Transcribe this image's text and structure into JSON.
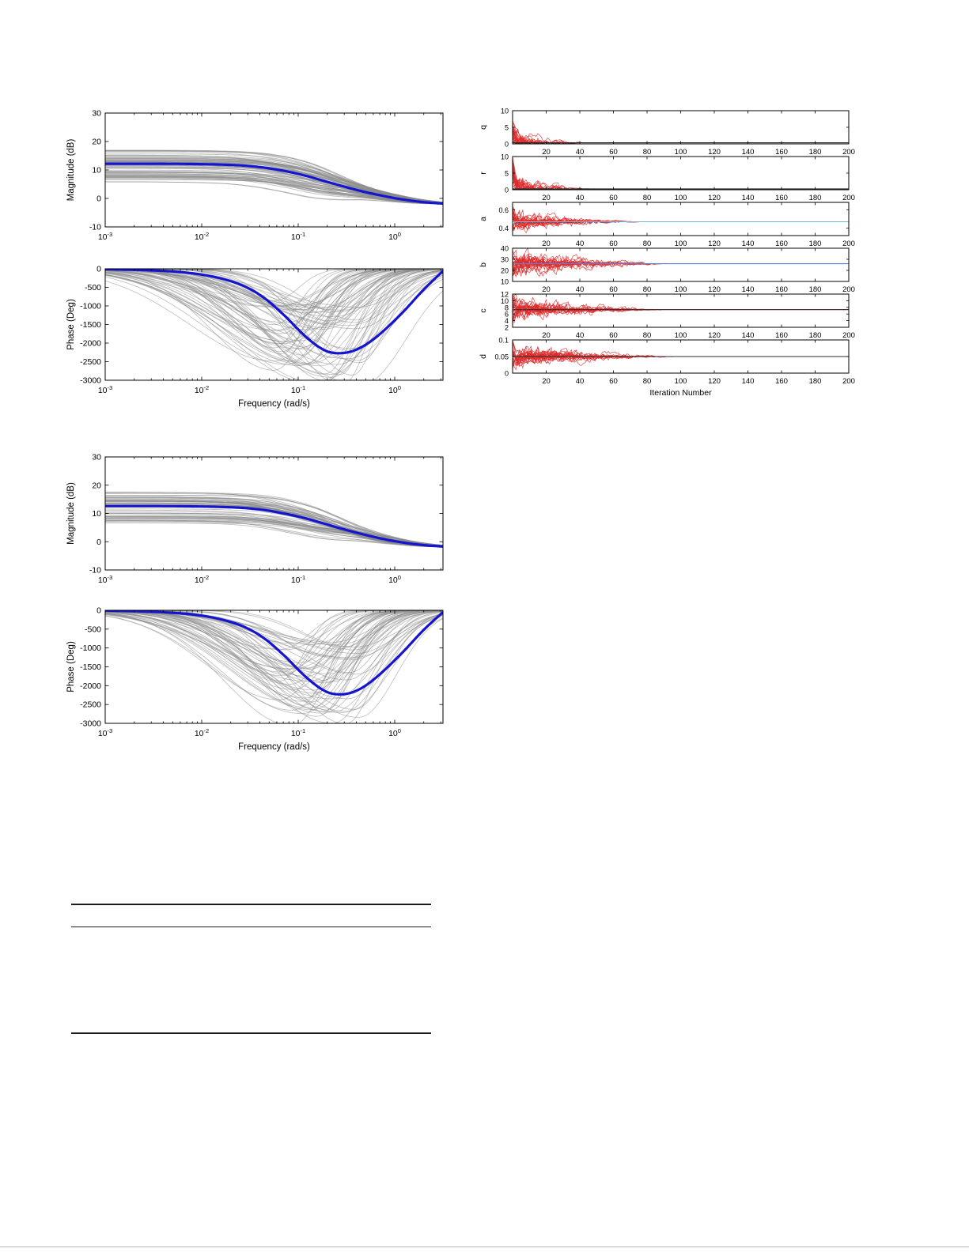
{
  "colors": {
    "mean_line": "#1515cf",
    "ensemble_gray": "#8a8a8a",
    "trace_red": "#dd2a2a",
    "target_dark": "#2b2b2b",
    "target_lightblue": "#6fb7dc",
    "target_blue": "#5b7fd4",
    "axis": "#000000"
  },
  "chart_data": [
    {
      "id": "bode1_mag",
      "kind": "bode_mag",
      "type": "line",
      "ylabel": "Magnitude (dB)",
      "xlabel": "",
      "ylim": [
        -10,
        30
      ],
      "yticks": [
        -10,
        0,
        10,
        20,
        30
      ],
      "xlim_log": [
        -3,
        0.5
      ],
      "xtick_exps": [
        -3,
        -2,
        -1,
        0
      ],
      "mean": {
        "x": [
          -3,
          -2.5,
          -2.1,
          -1.8,
          -1.55,
          -1.35,
          -1.15,
          -0.95,
          -0.75,
          -0.55,
          -0.35,
          -0.15,
          0.05,
          0.3,
          0.5
        ],
        "y": [
          12.2,
          12.2,
          12.1,
          11.9,
          11.5,
          10.8,
          9.7,
          8.2,
          6.3,
          4.4,
          2.6,
          1.1,
          -0.2,
          -1.3,
          -1.8
        ]
      },
      "ensemble": {
        "count": 68,
        "seed": 7,
        "offset": [
          -6.5,
          5
        ],
        "shift": 0.2,
        "extra": [
          {
            "offset": 9.5,
            "shift": -0.5,
            "droop": 7
          }
        ]
      }
    },
    {
      "id": "bode1_phase",
      "kind": "bode_phase",
      "type": "line",
      "ylabel": "Phase (Deg)",
      "xlabel": "Frequency (rad/s)",
      "ylim": [
        -3000,
        0
      ],
      "yticks": [
        0,
        -500,
        -1000,
        -1500,
        -2000,
        -2500,
        -3000
      ],
      "xlim_log": [
        -3,
        0.5
      ],
      "xtick_exps": [
        -3,
        -2,
        -1,
        0
      ],
      "mean": {
        "x": [
          -3,
          -2.5,
          -2.1,
          -1.8,
          -1.55,
          -1.35,
          -1.15,
          -0.95,
          -0.8,
          -0.68,
          -0.55,
          -0.42,
          -0.28,
          -0.12,
          0.08,
          0.3,
          0.5
        ],
        "y": [
          -12,
          -45,
          -120,
          -260,
          -480,
          -790,
          -1240,
          -1760,
          -2080,
          -2240,
          -2270,
          -2200,
          -2010,
          -1680,
          -1180,
          -560,
          -60
        ]
      },
      "ensemble": {
        "count": 70,
        "seed": 13,
        "depth": [
          750,
          3150
        ],
        "center": [
          -1.28,
          -0.32
        ],
        "sigma": [
          0.3,
          0.6
        ]
      }
    },
    {
      "id": "bode2_mag",
      "kind": "bode_mag",
      "type": "line",
      "ylabel": "Magnitude (dB)",
      "xlabel": "",
      "ylim": [
        -10,
        30
      ],
      "yticks": [
        -10,
        0,
        10,
        20,
        30
      ],
      "xlim_log": [
        -3,
        0.5
      ],
      "xtick_exps": [
        -3,
        -2,
        -1,
        0
      ],
      "mean": {
        "x": [
          -3,
          -2.5,
          -2.1,
          -1.8,
          -1.55,
          -1.35,
          -1.15,
          -0.95,
          -0.75,
          -0.55,
          -0.35,
          -0.15,
          0.05,
          0.3,
          0.5
        ],
        "y": [
          12.6,
          12.6,
          12.5,
          12.3,
          11.9,
          11.2,
          10.0,
          8.5,
          6.6,
          4.6,
          2.8,
          1.2,
          -0.1,
          -1.2,
          -1.7
        ]
      },
      "ensemble": {
        "count": 60,
        "seed": 23,
        "offset": [
          -6,
          5
        ],
        "shift": 0.2,
        "extra": [
          {
            "offset": -12.2,
            "shift": 0.1,
            "droop": 0
          },
          {
            "offset": 5.5,
            "shift": -0.1,
            "droop": 0
          }
        ]
      }
    },
    {
      "id": "bode2_phase",
      "kind": "bode_phase",
      "type": "line",
      "ylabel": "Phase (Deg)",
      "xlabel": "Frequency (rad/s)",
      "ylim": [
        -3000,
        0
      ],
      "yticks": [
        0,
        -500,
        -1000,
        -1500,
        -2000,
        -2500,
        -3000
      ],
      "xlim_log": [
        -3,
        0.5
      ],
      "xtick_exps": [
        -3,
        -2,
        -1,
        0
      ],
      "mean": {
        "x": [
          -3,
          -2.5,
          -2.1,
          -1.8,
          -1.55,
          -1.35,
          -1.15,
          -0.95,
          -0.8,
          -0.68,
          -0.55,
          -0.42,
          -0.28,
          -0.12,
          0.08,
          0.3,
          0.5
        ],
        "y": [
          -10,
          -40,
          -110,
          -240,
          -450,
          -750,
          -1190,
          -1700,
          -2020,
          -2190,
          -2230,
          -2160,
          -1960,
          -1620,
          -1120,
          -520,
          -50
        ]
      },
      "ensemble": {
        "count": 62,
        "seed": 31,
        "depth": [
          800,
          3100
        ],
        "center": [
          -1.2,
          -0.35
        ],
        "sigma": [
          0.3,
          0.58
        ]
      }
    },
    {
      "id": "iter_q",
      "kind": "trace",
      "type": "line",
      "ylabel": "q",
      "xlabel": "",
      "ylim": [
        0,
        10
      ],
      "yticks": [
        0,
        5,
        10
      ],
      "xlim": [
        0,
        200
      ],
      "xticks": [
        20,
        40,
        60,
        80,
        100,
        120,
        140,
        160,
        180,
        200
      ],
      "target": 0.35,
      "target_color": "target_dark",
      "traces": {
        "count": 24,
        "seed": 101,
        "start": [
          0,
          10
        ],
        "converge": [
          8,
          45
        ]
      }
    },
    {
      "id": "iter_r",
      "kind": "trace",
      "type": "line",
      "ylabel": "r",
      "xlabel": "",
      "ylim": [
        0,
        10
      ],
      "yticks": [
        0,
        5,
        10
      ],
      "xlim": [
        0,
        200
      ],
      "xticks": [
        20,
        40,
        60,
        80,
        100,
        120,
        140,
        160,
        180,
        200
      ],
      "target": 0.25,
      "target_color": "target_dark",
      "traces": {
        "count": 24,
        "seed": 202,
        "start": [
          0,
          10
        ],
        "converge": [
          8,
          48
        ]
      }
    },
    {
      "id": "iter_a",
      "kind": "trace",
      "type": "line",
      "ylabel": "a",
      "xlabel": "",
      "ylim": [
        0.32,
        0.68
      ],
      "yticks": [
        0.4,
        0.6
      ],
      "xlim": [
        0,
        200
      ],
      "xticks": [
        20,
        40,
        60,
        80,
        100,
        120,
        140,
        160,
        180,
        200
      ],
      "target": 0.47,
      "target_color": "target_lightblue",
      "traces": {
        "count": 24,
        "seed": 303,
        "start": [
          0.36,
          0.64
        ],
        "converge": [
          15,
          80
        ]
      }
    },
    {
      "id": "iter_b",
      "kind": "trace",
      "type": "line",
      "ylabel": "b",
      "xlabel": "",
      "ylim": [
        10,
        40
      ],
      "yticks": [
        10,
        20,
        30,
        40
      ],
      "xlim": [
        0,
        200
      ],
      "xticks": [
        20,
        40,
        60,
        80,
        100,
        120,
        140,
        160,
        180,
        200
      ],
      "target": 26,
      "target_color": "target_blue",
      "traces": {
        "count": 24,
        "seed": 404,
        "start": [
          12,
          40
        ],
        "converge": [
          20,
          95
        ]
      }
    },
    {
      "id": "iter_c",
      "kind": "trace",
      "type": "line",
      "ylabel": "c",
      "xlabel": "",
      "ylim": [
        2,
        12
      ],
      "yticks": [
        2,
        4,
        6,
        8,
        10,
        12
      ],
      "xlim": [
        0,
        200
      ],
      "xticks": [
        20,
        40,
        60,
        80,
        100,
        120,
        140,
        160,
        180,
        200
      ],
      "target": 7.3,
      "target_color": "target_dark",
      "traces": {
        "count": 24,
        "seed": 505,
        "start": [
          3,
          12
        ],
        "converge": [
          20,
          95
        ]
      }
    },
    {
      "id": "iter_d",
      "kind": "trace",
      "type": "line",
      "ylabel": "d",
      "xlabel": "Iteration Number",
      "ylim": [
        0,
        0.1
      ],
      "yticks": [
        0,
        0.05,
        0.1
      ],
      "xlim": [
        0,
        200
      ],
      "xticks": [
        20,
        40,
        60,
        80,
        100,
        120,
        140,
        160,
        180,
        200
      ],
      "target": 0.05,
      "target_color": "target_dark",
      "traces": {
        "count": 24,
        "seed": 606,
        "start": [
          0.01,
          0.1
        ],
        "converge": [
          25,
          100
        ]
      }
    }
  ]
}
